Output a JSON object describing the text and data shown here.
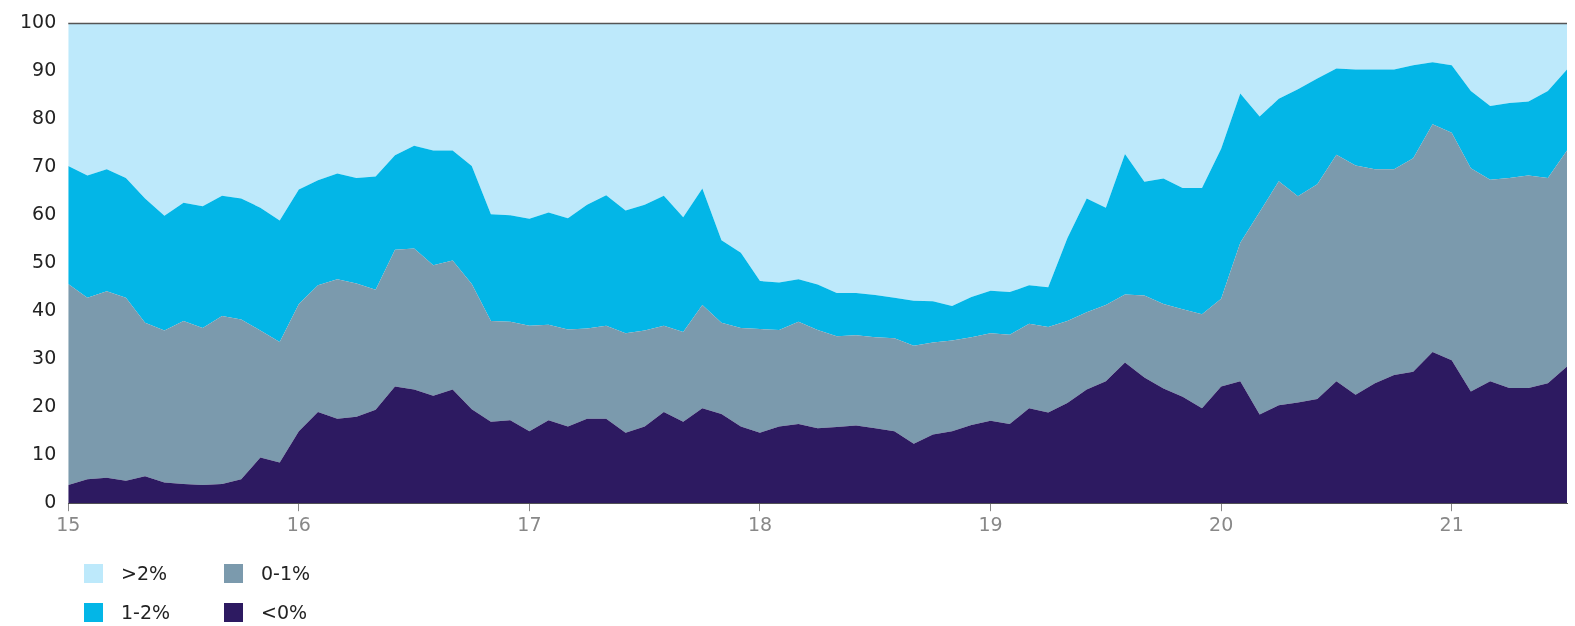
{
  "chart_data": {
    "type": "area",
    "stacked": true,
    "grid": false,
    "legend": "bottom left",
    "x": [
      15,
      15.083,
      15.167,
      15.25,
      15.333,
      15.417,
      15.5,
      15.583,
      15.667,
      15.75,
      15.833,
      15.917,
      16,
      16.083,
      16.167,
      16.25,
      16.333,
      16.417,
      16.5,
      16.583,
      16.667,
      16.75,
      16.833,
      16.917,
      17,
      17.083,
      17.167,
      17.25,
      17.333,
      17.417,
      17.5,
      17.583,
      17.667,
      17.75,
      17.833,
      17.917,
      18,
      18.083,
      18.167,
      18.25,
      18.333,
      18.417,
      18.5,
      18.583,
      18.667,
      18.75,
      18.833,
      18.917,
      19,
      19.083,
      19.167,
      19.25,
      19.333,
      19.417,
      19.5,
      19.583,
      19.667,
      19.75,
      19.833,
      19.917,
      20,
      20.083,
      20.167,
      20.25,
      20.333,
      20.417,
      20.5,
      20.583,
      20.667,
      20.75,
      20.833,
      20.917,
      21,
      21.083,
      21.167,
      21.25,
      21.333,
      21.417,
      21.5
    ],
    "xlim": [
      15,
      21.5
    ],
    "xticks": [
      15,
      16,
      17,
      18,
      19,
      20,
      21
    ],
    "ylim": [
      0,
      100
    ],
    "yticks": [
      0,
      10,
      20,
      30,
      40,
      50,
      60,
      70,
      80,
      90,
      100
    ],
    "series": [
      {
        "name": "<0%",
        "color": "#2d1a61",
        "values": [
          3.8,
          5,
          5.3,
          4.7,
          5.6,
          4.3,
          4,
          3.8,
          4,
          5,
          9.5,
          8.5,
          15,
          19,
          17.6,
          18,
          19.5,
          24.3,
          23.7,
          22.4,
          23.7,
          19.6,
          17,
          17.3,
          15,
          17.3,
          16,
          17.6,
          17.6,
          14.7,
          16,
          19,
          17,
          19.8,
          18.6,
          16,
          14.7,
          16,
          16.5,
          15.6,
          15.9,
          16.2,
          15.6,
          15,
          12.4,
          14.3,
          15,
          16.3,
          17.2,
          16.5,
          19.8,
          18.9,
          20.9,
          23.7,
          25.4,
          29.3,
          26.2,
          23.9,
          22.2,
          19.8,
          24.3,
          25.4,
          18.5,
          20.4,
          21,
          21.7,
          25.4,
          22.6,
          25,
          26.7,
          27.4,
          31.5,
          29.8,
          23.3,
          25.4,
          24,
          24,
          25,
          28.5
        ]
      },
      {
        "name": "0-1%",
        "color": "#7b9aad",
        "values": [
          41.9,
          37.8,
          38.9,
          38.1,
          32,
          31.7,
          34,
          32.7,
          35,
          33.3,
          26.5,
          25.1,
          26.5,
          26.4,
          29.1,
          27.8,
          25,
          28.5,
          29.4,
          27.2,
          26.9,
          26.1,
          21,
          20.5,
          22,
          19.9,
          20.2,
          18.8,
          19.4,
          20.7,
          20,
          18,
          18.7,
          21.5,
          19,
          20.5,
          21.6,
          20.1,
          21.3,
          20.5,
          18.9,
          18.8,
          19,
          19.4,
          20.4,
          19.2,
          18.9,
          18.3,
          18.2,
          18.6,
          17.6,
          17.8,
          17.1,
          16.1,
          15.9,
          14.2,
          17.1,
          17.6,
          18.2,
          19.6,
          18.3,
          28.9,
          42.2,
          46.7,
          43,
          44.8,
          47.2,
          47.8,
          44.6,
          42.9,
          44.5,
          47.5,
          47.4,
          46.5,
          42,
          43.8,
          44.3,
          42.8,
          45
        ]
      },
      {
        "name": "1-2%",
        "color": "#03b6e7",
        "values": [
          24.6,
          25.5,
          25.4,
          25,
          25.9,
          23.9,
          24.6,
          25.4,
          25.1,
          25.2,
          25.6,
          25.3,
          23.9,
          21.9,
          22,
          22,
          23.6,
          19.7,
          21.4,
          23.9,
          22.9,
          24.6,
          22.2,
          22.2,
          22.3,
          23.4,
          23.2,
          25.8,
          27.2,
          25.6,
          26.2,
          27.1,
          23.9,
          24.3,
          17.2,
          15.7,
          10,
          9.9,
          8.9,
          9.5,
          9,
          8.8,
          8.8,
          8.4,
          9.4,
          8.6,
          7.2,
          8.4,
          8.9,
          8.9,
          8,
          8.3,
          17.2,
          23.7,
          20.3,
          29.3,
          23.7,
          26.2,
          25.3,
          26.3,
          31.3,
          31.1,
          19.9,
          17.2,
          22.3,
          22,
          18,
          20,
          20.8,
          20.8,
          19.4,
          12.9,
          14.1,
          16.1,
          15.4,
          15.6,
          15.4,
          18.1,
          16.9
        ]
      },
      {
        "name": ">2%",
        "color": "#bde9fb",
        "values": [
          29.7,
          31.7,
          30.4,
          32.2,
          36.5,
          40.1,
          37.4,
          38.1,
          35.9,
          36.5,
          38.4,
          41.1,
          34.6,
          32.7,
          31.3,
          32.2,
          31.9,
          27.5,
          25.5,
          26.5,
          26.5,
          29.7,
          39.8,
          40,
          40.7,
          39.4,
          40.6,
          37.8,
          35.8,
          39,
          37.8,
          35.9,
          40.4,
          34.4,
          45.2,
          47.8,
          53.7,
          54,
          53.3,
          54.4,
          56.2,
          56.2,
          56.6,
          57.2,
          57.8,
          57.9,
          58.9,
          57,
          55.7,
          56,
          54.6,
          55,
          44.8,
          36.5,
          38.4,
          27.2,
          33,
          32.3,
          34.3,
          34.3,
          26.1,
          14.6,
          19.4,
          15.7,
          13.7,
          11.5,
          9.4,
          9.6,
          9.6,
          9.6,
          8.7,
          8.1,
          8.7,
          14.1,
          17.2,
          16.6,
          16.3,
          14.1,
          9.6
        ]
      }
    ]
  }
}
